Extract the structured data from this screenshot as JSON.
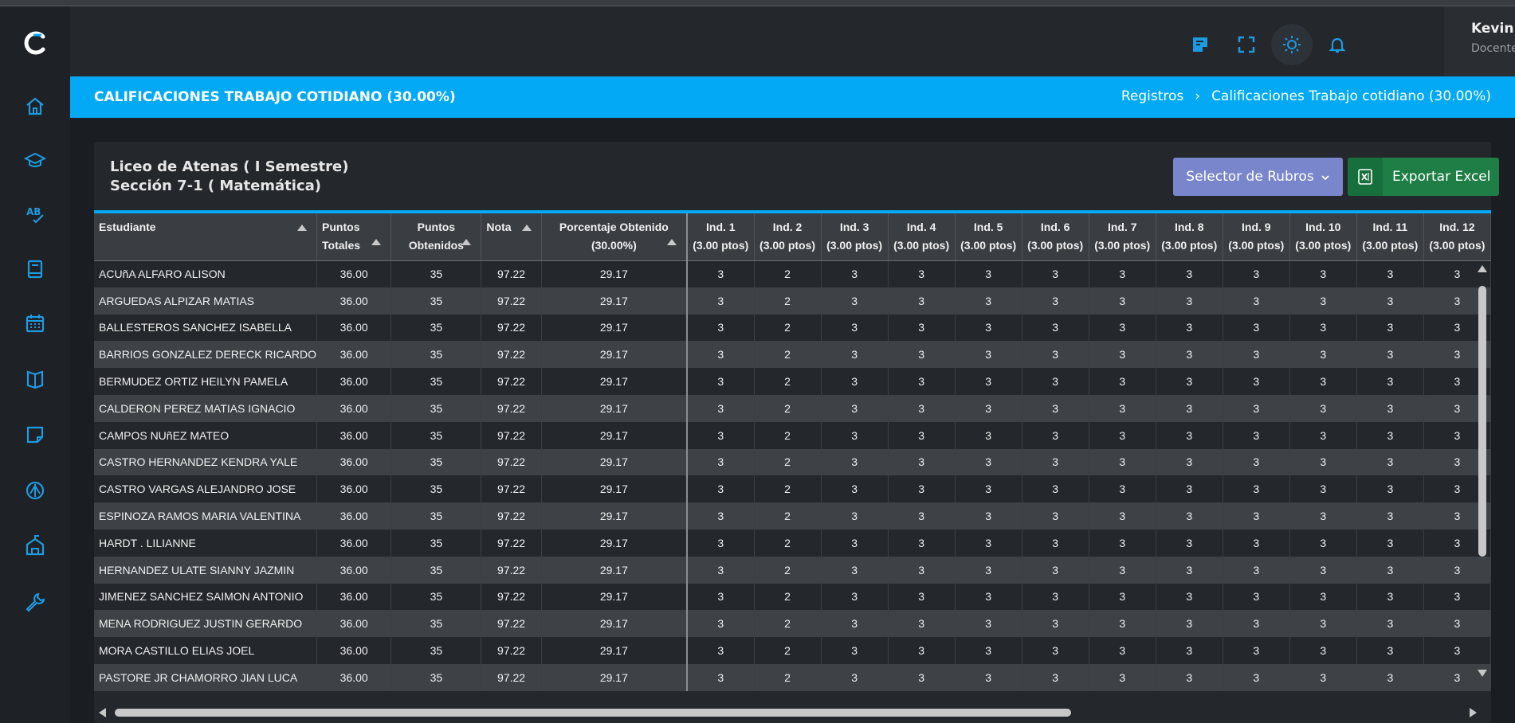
{
  "app": {
    "logo": "c-logo",
    "accent": "#03a9f4"
  },
  "sidebar": {
    "items": [
      {
        "icon": "home-icon"
      },
      {
        "icon": "graduation-cap-icon"
      },
      {
        "icon": "spellcheck-icon"
      },
      {
        "icon": "book-icon"
      },
      {
        "icon": "calendar-icon"
      },
      {
        "icon": "open-book-icon"
      },
      {
        "icon": "sticky-note-icon"
      },
      {
        "icon": "compass-icon"
      },
      {
        "icon": "school-building-icon"
      },
      {
        "icon": "wrench-icon"
      }
    ]
  },
  "topbar": {
    "icons": [
      "note-icon",
      "fullscreen-icon",
      "brightness-icon",
      "bell-icon"
    ],
    "user": {
      "name": "Kevin Pérez",
      "role": "Docente"
    }
  },
  "banner": {
    "title": "CALIFICACIONES TRABAJO COTIDIANO (30.00%)",
    "breadcrumb": [
      "Registros",
      "Calificaciones Trabajo cotidiano (30.00%)"
    ]
  },
  "card": {
    "school": "Liceo de Atenas ( I Semestre)",
    "section": "Sección 7-1 ( Matemática)",
    "rubros_button": "Selector de Rubros",
    "excel_button": "Exportar Excel"
  },
  "table": {
    "headers": {
      "student": "Estudiante",
      "total_line1": "Puntos",
      "total_line2": "Totales",
      "obtained_line1": "Puntos",
      "obtained_line2": "Obtenidos",
      "grade": "Nota",
      "percent_line1": "Porcentaje Obtenido",
      "percent_line2": "(30.00%)"
    },
    "indicators": [
      {
        "name": "Ind. 1",
        "points": "(3.00 ptos)"
      },
      {
        "name": "Ind. 2",
        "points": "(3.00 ptos)"
      },
      {
        "name": "Ind. 3",
        "points": "(3.00 ptos)"
      },
      {
        "name": "Ind. 4",
        "points": "(3.00 ptos)"
      },
      {
        "name": "Ind. 5",
        "points": "(3.00 ptos)"
      },
      {
        "name": "Ind. 6",
        "points": "(3.00 ptos)"
      },
      {
        "name": "Ind. 7",
        "points": "(3.00 ptos)"
      },
      {
        "name": "Ind. 8",
        "points": "(3.00 ptos)"
      },
      {
        "name": "Ind. 9",
        "points": "(3.00 ptos)"
      },
      {
        "name": "Ind. 10",
        "points": "(3.00 ptos)"
      },
      {
        "name": "Ind. 11",
        "points": "(3.00 ptos)"
      },
      {
        "name": "Ind. 12",
        "points": "(3.00 ptos)"
      }
    ],
    "rows": [
      {
        "name": "ACUñA ALFARO ALISON",
        "total": "36.00",
        "obtained": "35",
        "grade": "97.22",
        "percent": "29.17",
        "ind": [
          "3",
          "2",
          "3",
          "3",
          "3",
          "3",
          "3",
          "3",
          "3",
          "3",
          "3",
          "3"
        ]
      },
      {
        "name": "ARGUEDAS ALPIZAR MATIAS",
        "total": "36.00",
        "obtained": "35",
        "grade": "97.22",
        "percent": "29.17",
        "ind": [
          "3",
          "2",
          "3",
          "3",
          "3",
          "3",
          "3",
          "3",
          "3",
          "3",
          "3",
          "3"
        ]
      },
      {
        "name": "BALLESTEROS SANCHEZ ISABELLA",
        "total": "36.00",
        "obtained": "35",
        "grade": "97.22",
        "percent": "29.17",
        "ind": [
          "3",
          "2",
          "3",
          "3",
          "3",
          "3",
          "3",
          "3",
          "3",
          "3",
          "3",
          "3"
        ]
      },
      {
        "name": "BARRIOS GONZALEZ DERECK RICARDO",
        "total": "36.00",
        "obtained": "35",
        "grade": "97.22",
        "percent": "29.17",
        "ind": [
          "3",
          "2",
          "3",
          "3",
          "3",
          "3",
          "3",
          "3",
          "3",
          "3",
          "3",
          "3"
        ]
      },
      {
        "name": "BERMUDEZ ORTIZ HEILYN PAMELA",
        "total": "36.00",
        "obtained": "35",
        "grade": "97.22",
        "percent": "29.17",
        "ind": [
          "3",
          "2",
          "3",
          "3",
          "3",
          "3",
          "3",
          "3",
          "3",
          "3",
          "3",
          "3"
        ]
      },
      {
        "name": "CALDERON PEREZ MATIAS IGNACIO",
        "total": "36.00",
        "obtained": "35",
        "grade": "97.22",
        "percent": "29.17",
        "ind": [
          "3",
          "2",
          "3",
          "3",
          "3",
          "3",
          "3",
          "3",
          "3",
          "3",
          "3",
          "3"
        ]
      },
      {
        "name": "CAMPOS NUñEZ MATEO",
        "total": "36.00",
        "obtained": "35",
        "grade": "97.22",
        "percent": "29.17",
        "ind": [
          "3",
          "2",
          "3",
          "3",
          "3",
          "3",
          "3",
          "3",
          "3",
          "3",
          "3",
          "3"
        ]
      },
      {
        "name": "CASTRO HERNANDEZ KENDRA YALE",
        "total": "36.00",
        "obtained": "35",
        "grade": "97.22",
        "percent": "29.17",
        "ind": [
          "3",
          "2",
          "3",
          "3",
          "3",
          "3",
          "3",
          "3",
          "3",
          "3",
          "3",
          "3"
        ]
      },
      {
        "name": "CASTRO VARGAS ALEJANDRO JOSE",
        "total": "36.00",
        "obtained": "35",
        "grade": "97.22",
        "percent": "29.17",
        "ind": [
          "3",
          "2",
          "3",
          "3",
          "3",
          "3",
          "3",
          "3",
          "3",
          "3",
          "3",
          "3"
        ]
      },
      {
        "name": "ESPINOZA RAMOS MARIA VALENTINA",
        "total": "36.00",
        "obtained": "35",
        "grade": "97.22",
        "percent": "29.17",
        "ind": [
          "3",
          "2",
          "3",
          "3",
          "3",
          "3",
          "3",
          "3",
          "3",
          "3",
          "3",
          "3"
        ]
      },
      {
        "name": "HARDT . LILIANNE",
        "total": "36.00",
        "obtained": "35",
        "grade": "97.22",
        "percent": "29.17",
        "ind": [
          "3",
          "2",
          "3",
          "3",
          "3",
          "3",
          "3",
          "3",
          "3",
          "3",
          "3",
          "3"
        ]
      },
      {
        "name": "HERNANDEZ ULATE SIANNY JAZMIN",
        "total": "36.00",
        "obtained": "35",
        "grade": "97.22",
        "percent": "29.17",
        "ind": [
          "3",
          "2",
          "3",
          "3",
          "3",
          "3",
          "3",
          "3",
          "3",
          "3",
          "3",
          "3"
        ]
      },
      {
        "name": "JIMENEZ SANCHEZ SAIMON ANTONIO",
        "total": "36.00",
        "obtained": "35",
        "grade": "97.22",
        "percent": "29.17",
        "ind": [
          "3",
          "2",
          "3",
          "3",
          "3",
          "3",
          "3",
          "3",
          "3",
          "3",
          "3",
          "3"
        ]
      },
      {
        "name": "MENA RODRIGUEZ JUSTIN GERARDO",
        "total": "36.00",
        "obtained": "35",
        "grade": "97.22",
        "percent": "29.17",
        "ind": [
          "3",
          "2",
          "3",
          "3",
          "3",
          "3",
          "3",
          "3",
          "3",
          "3",
          "3",
          "3"
        ]
      },
      {
        "name": "MORA CASTILLO ELIAS JOEL",
        "total": "36.00",
        "obtained": "35",
        "grade": "97.22",
        "percent": "29.17",
        "ind": [
          "3",
          "2",
          "3",
          "3",
          "3",
          "3",
          "3",
          "3",
          "3",
          "3",
          "3",
          "3"
        ]
      },
      {
        "name": "PASTORE JR CHAMORRO JIAN LUCA",
        "total": "36.00",
        "obtained": "35",
        "grade": "97.22",
        "percent": "29.17",
        "ind": [
          "3",
          "2",
          "3",
          "3",
          "3",
          "3",
          "3",
          "3",
          "3",
          "3",
          "3",
          "3"
        ]
      }
    ]
  }
}
